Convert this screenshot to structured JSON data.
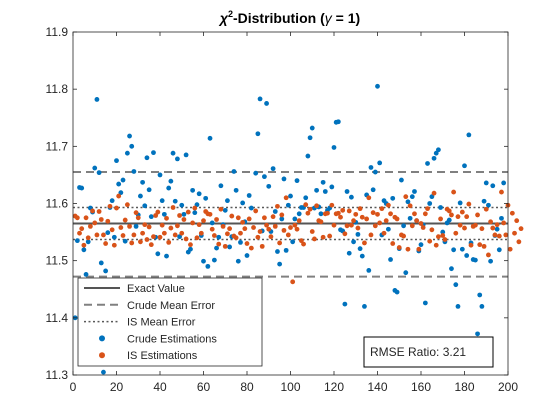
{
  "chart_data": {
    "type": "scatter",
    "title": {
      "chi": "χ",
      "sup": "2",
      "rest": "-Distribution (",
      "gamma": "γ",
      "eq": " = 1)"
    },
    "xlabel": "",
    "ylabel": "",
    "xlim": [
      0,
      200
    ],
    "ylim": [
      11.3,
      11.9
    ],
    "xticks": [
      0,
      20,
      40,
      60,
      80,
      100,
      120,
      140,
      160,
      180,
      200
    ],
    "yticks": [
      11.3,
      11.4,
      11.5,
      11.6,
      11.7,
      11.8,
      11.9
    ],
    "grid": false,
    "legend_position": "bottom-left",
    "lines": [
      {
        "name": "Exact Value",
        "y": 11.565,
        "style": "solid",
        "color": "#555555"
      },
      {
        "name": "Crude Mean Error",
        "y": [
          11.472,
          11.655
        ],
        "style": "dashed",
        "color": "#808080"
      },
      {
        "name": "IS Mean Error",
        "y": [
          11.537,
          11.593
        ],
        "style": "dotted",
        "color": "#595959"
      }
    ],
    "series": [
      {
        "name": "Crude Estimations",
        "color": "#0072BD",
        "values": [
          11.4,
          11.535,
          11.628,
          11.627,
          11.519,
          11.476,
          11.533,
          11.592,
          11.585,
          11.662,
          11.782,
          11.654,
          11.496,
          11.305,
          11.482,
          11.549,
          11.593,
          11.605,
          11.541,
          11.675,
          11.634,
          11.619,
          11.641,
          11.534,
          11.688,
          11.718,
          11.7,
          11.656,
          11.56,
          11.58,
          11.613,
          11.637,
          11.596,
          11.68,
          11.624,
          11.577,
          11.689,
          11.541,
          11.512,
          11.65,
          11.605,
          11.581,
          11.508,
          11.627,
          11.639,
          11.688,
          11.604,
          11.678,
          11.542,
          11.597,
          11.581,
          11.685,
          11.515,
          11.52,
          11.623,
          11.584,
          11.598,
          11.617,
          11.544,
          11.499,
          11.609,
          11.49,
          11.714,
          11.566,
          11.501,
          11.522,
          11.541,
          11.631,
          11.563,
          11.588,
          11.605,
          11.524,
          11.542,
          11.656,
          11.623,
          11.499,
          11.532,
          11.601,
          11.568,
          11.509,
          11.614,
          11.592,
          11.419,
          11.653,
          11.722,
          11.783,
          11.552,
          11.647,
          11.775,
          11.63,
          11.551,
          11.661,
          11.586,
          11.516,
          11.494,
          11.573,
          11.643,
          11.518,
          11.597,
          11.613,
          11.533,
          11.573,
          11.64,
          11.582,
          11.593,
          11.593,
          11.61,
          11.683,
          11.715,
          11.732,
          11.592,
          11.623,
          11.594,
          11.582,
          11.637,
          11.621,
          11.588,
          11.592,
          11.629,
          11.698,
          11.742,
          11.743,
          11.554,
          11.552,
          11.424,
          11.621,
          11.513,
          11.611,
          11.533,
          11.567,
          11.546,
          11.521,
          11.508,
          11.42,
          11.615,
          11.483,
          11.663,
          11.624,
          11.655,
          11.805,
          11.671,
          11.545,
          11.605,
          11.6,
          11.555,
          11.502,
          11.609,
          11.448,
          11.445,
          11.521,
          11.641,
          11.561,
          11.479,
          11.603,
          11.574,
          11.612,
          11.621,
          11.57,
          11.517,
          11.528,
          11.563,
          11.426,
          11.67,
          11.6,
          11.612,
          11.679,
          11.688,
          11.694,
          11.593,
          11.55,
          11.533,
          11.566,
          11.571,
          11.486,
          11.519,
          11.458,
          11.42,
          11.601,
          11.52,
          11.666,
          11.509,
          11.72,
          11.531,
          11.502,
          11.501,
          11.372,
          11.44,
          11.42,
          11.604,
          11.636,
          11.597,
          11.499,
          11.631,
          11.544,
          11.555,
          11.519,
          11.574,
          11.636
        ]
      },
      {
        "name": "IS Estimations",
        "color": "#D95319",
        "values": [
          11.578,
          11.575,
          11.548,
          11.556,
          11.527,
          11.575,
          11.54,
          11.56,
          11.587,
          11.566,
          11.545,
          11.586,
          11.572,
          11.545,
          11.53,
          11.569,
          11.595,
          11.554,
          11.527,
          11.592,
          11.613,
          11.558,
          11.544,
          11.571,
          11.598,
          11.56,
          11.531,
          11.545,
          11.584,
          11.575,
          11.533,
          11.548,
          11.563,
          11.537,
          11.559,
          11.528,
          11.542,
          11.579,
          11.585,
          11.541,
          11.562,
          11.548,
          11.574,
          11.532,
          11.557,
          11.593,
          11.545,
          11.561,
          11.579,
          11.548,
          11.572,
          11.538,
          11.585,
          11.528,
          11.566,
          11.592,
          11.54,
          11.563,
          11.548,
          11.57,
          11.586,
          11.582,
          11.581,
          11.555,
          11.544,
          11.572,
          11.529,
          11.59,
          11.56,
          11.525,
          11.547,
          11.556,
          11.578,
          11.543,
          11.54,
          11.575,
          11.548,
          11.567,
          11.556,
          11.53,
          11.573,
          11.522,
          11.558,
          11.587,
          11.541,
          11.551,
          11.525,
          11.575,
          11.562,
          11.555,
          11.542,
          11.577,
          11.56,
          11.595,
          11.531,
          11.58,
          11.553,
          11.61,
          11.545,
          11.558,
          11.463,
          11.562,
          11.555,
          11.57,
          11.535,
          11.529,
          11.598,
          11.583,
          11.59,
          11.551,
          11.538,
          11.596,
          11.57,
          11.568,
          11.541,
          11.582,
          11.583,
          11.543,
          11.597,
          11.562,
          11.582,
          11.583,
          11.576,
          11.588,
          11.547,
          11.561,
          11.587,
          11.562,
          11.57,
          11.581,
          11.557,
          11.591,
          11.576,
          11.531,
          11.573,
          11.61,
          11.545,
          11.584,
          11.561,
          11.581,
          11.566,
          11.591,
          11.548,
          11.57,
          11.597,
          11.582,
          11.53,
          11.576,
          11.573,
          11.523,
          11.545,
          11.543,
          11.612,
          11.52,
          11.596,
          11.561,
          11.582,
          11.57,
          11.52,
          11.565,
          11.558,
          11.582,
          11.591,
          11.534,
          11.554,
          11.618,
          11.527,
          11.542,
          11.573,
          11.544,
          11.537,
          11.59,
          11.587,
          11.58,
          11.62,
          11.548,
          11.577,
          11.562,
          11.585,
          11.557,
          11.577,
          11.599,
          11.527,
          11.56,
          11.562,
          11.58,
          11.528,
          11.556,
          11.525,
          11.59,
          11.51,
          11.568,
          11.557,
          11.545,
          11.563,
          11.543,
          11.62,
          11.566,
          11.545,
          11.597,
          11.52,
          11.583,
          11.548,
          11.57,
          11.533,
          11.556
        ]
      }
    ],
    "legend": [
      "Exact Value",
      "Crude Mean Error",
      "IS Mean Error",
      "Crude Estimations",
      "IS Estimations"
    ],
    "annotation": {
      "label": "RMSE Ratio: ",
      "value": "3.21"
    }
  }
}
